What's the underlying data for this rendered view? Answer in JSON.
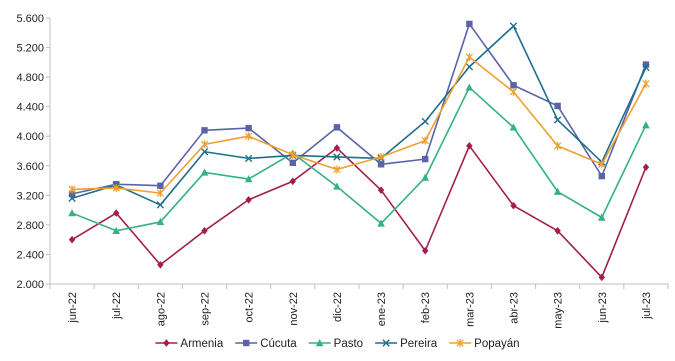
{
  "chart_data": {
    "type": "line",
    "title": "",
    "xlabel": "",
    "ylabel": "",
    "ylim": [
      2000,
      5600
    ],
    "y_ticks": [
      2000,
      2400,
      2800,
      3200,
      3600,
      4000,
      4400,
      4800,
      5200,
      5600
    ],
    "y_tick_labels": [
      "2.000",
      "2.400",
      "2.800",
      "3.200",
      "3.600",
      "4.000",
      "4.400",
      "4.800",
      "5.200",
      "5.600"
    ],
    "grid": false,
    "legend_position": "bottom",
    "categories": [
      "jun-22",
      "jul-22",
      "ago-22",
      "sep-22",
      "oct-22",
      "nov-22",
      "dic-22",
      "ene-23",
      "feb-23",
      "mar-23",
      "abr-23",
      "may-23",
      "jun-23",
      "jul-23"
    ],
    "series": [
      {
        "name": "Armenia",
        "color": "#a31d4f",
        "marker": "diamond",
        "values": [
          2600,
          2960,
          2260,
          2720,
          3140,
          3390,
          3840,
          3270,
          2450,
          3870,
          3060,
          2720,
          2090,
          3580
        ]
      },
      {
        "name": "Cúcuta",
        "color": "#5b63a8",
        "marker": "square",
        "values": [
          3220,
          3350,
          3330,
          4080,
          4110,
          3640,
          4120,
          3620,
          3690,
          5520,
          4690,
          4410,
          3460,
          4970
        ]
      },
      {
        "name": "Pasto",
        "color": "#35b27f",
        "marker": "triangle",
        "values": [
          2960,
          2720,
          2840,
          3510,
          3420,
          3770,
          3320,
          2820,
          3440,
          4660,
          4120,
          3250,
          2900,
          4150
        ]
      },
      {
        "name": "Pereira",
        "color": "#1e6f8c",
        "marker": "x",
        "values": [
          3160,
          3340,
          3070,
          3790,
          3700,
          3740,
          3720,
          3700,
          4200,
          4940,
          5490,
          4220,
          3650,
          4930
        ]
      },
      {
        "name": "Popayán",
        "color": "#f0a030",
        "marker": "star",
        "values": [
          3280,
          3300,
          3230,
          3890,
          4000,
          3750,
          3550,
          3720,
          3940,
          5070,
          4600,
          3870,
          3620,
          4710
        ]
      }
    ]
  }
}
